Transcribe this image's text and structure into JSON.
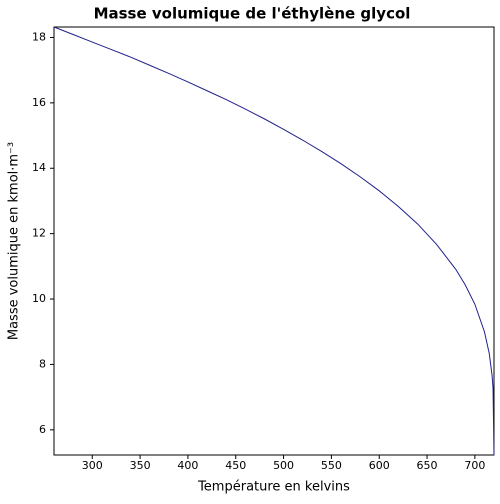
{
  "chart_data": {
    "type": "line",
    "title": "Masse volumique de l'éthylène glycol",
    "xlabel": "Température en kelvins",
    "ylabel": "Masse volumique en kmol·m⁻³",
    "x": [
      260,
      280,
      300,
      320,
      340,
      360,
      380,
      400,
      420,
      440,
      460,
      480,
      500,
      520,
      540,
      560,
      580,
      600,
      620,
      640,
      660,
      680,
      690,
      700,
      710,
      715,
      718,
      719,
      720
    ],
    "values": [
      18.32,
      18.09,
      17.86,
      17.63,
      17.4,
      17.15,
      16.9,
      16.64,
      16.37,
      16.1,
      15.81,
      15.51,
      15.19,
      14.86,
      14.51,
      14.14,
      13.74,
      13.31,
      12.83,
      12.3,
      11.67,
      10.91,
      10.43,
      9.84,
      9.0,
      8.34,
      7.66,
      7.26,
      5.23
    ],
    "color": "#20208c",
    "xlim": [
      260,
      720
    ],
    "ylim": [
      5.23,
      18.32
    ],
    "xticks": [
      300,
      350,
      400,
      450,
      500,
      550,
      600,
      650,
      700
    ],
    "yticks": [
      6,
      8,
      10,
      12,
      14,
      16,
      18
    ]
  }
}
